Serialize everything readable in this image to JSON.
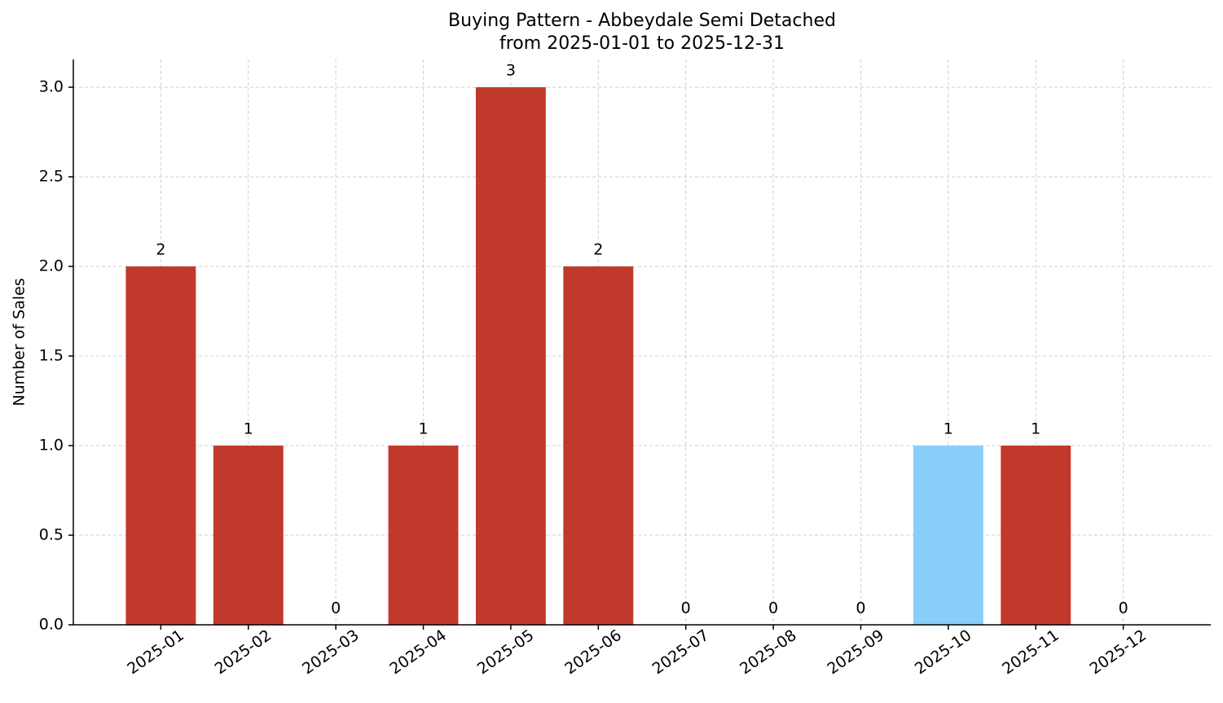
{
  "chart_data": {
    "type": "bar",
    "title": "Buying Pattern - Abbeydale Semi Detached",
    "subtitle": "from 2025-01-01 to 2025-12-31",
    "y_label": "Number of Sales",
    "categories": [
      "2025-01",
      "2025-02",
      "2025-03",
      "2025-04",
      "2025-05",
      "2025-06",
      "2025-07",
      "2025-08",
      "2025-09",
      "2025-10",
      "2025-11",
      "2025-12"
    ],
    "values": [
      2,
      1,
      0,
      1,
      3,
      2,
      0,
      0,
      0,
      1,
      1,
      0
    ],
    "colors": [
      "#c0392b",
      "#c0392b",
      "#c0392b",
      "#c0392b",
      "#c0392b",
      "#c0392b",
      "#c0392b",
      "#c0392b",
      "#c0392b",
      "#87cefa",
      "#c0392b",
      "#c0392b"
    ],
    "ylim": [
      0,
      3.155
    ],
    "yticks": [
      {
        "value": 0,
        "label": "0.0"
      },
      0.5,
      {
        "value": 1,
        "label": "1.0"
      },
      1.5,
      {
        "value": 2,
        "label": "2.0"
      },
      2.5,
      {
        "value": 3,
        "label": "3.0"
      }
    ],
    "grid": true
  }
}
